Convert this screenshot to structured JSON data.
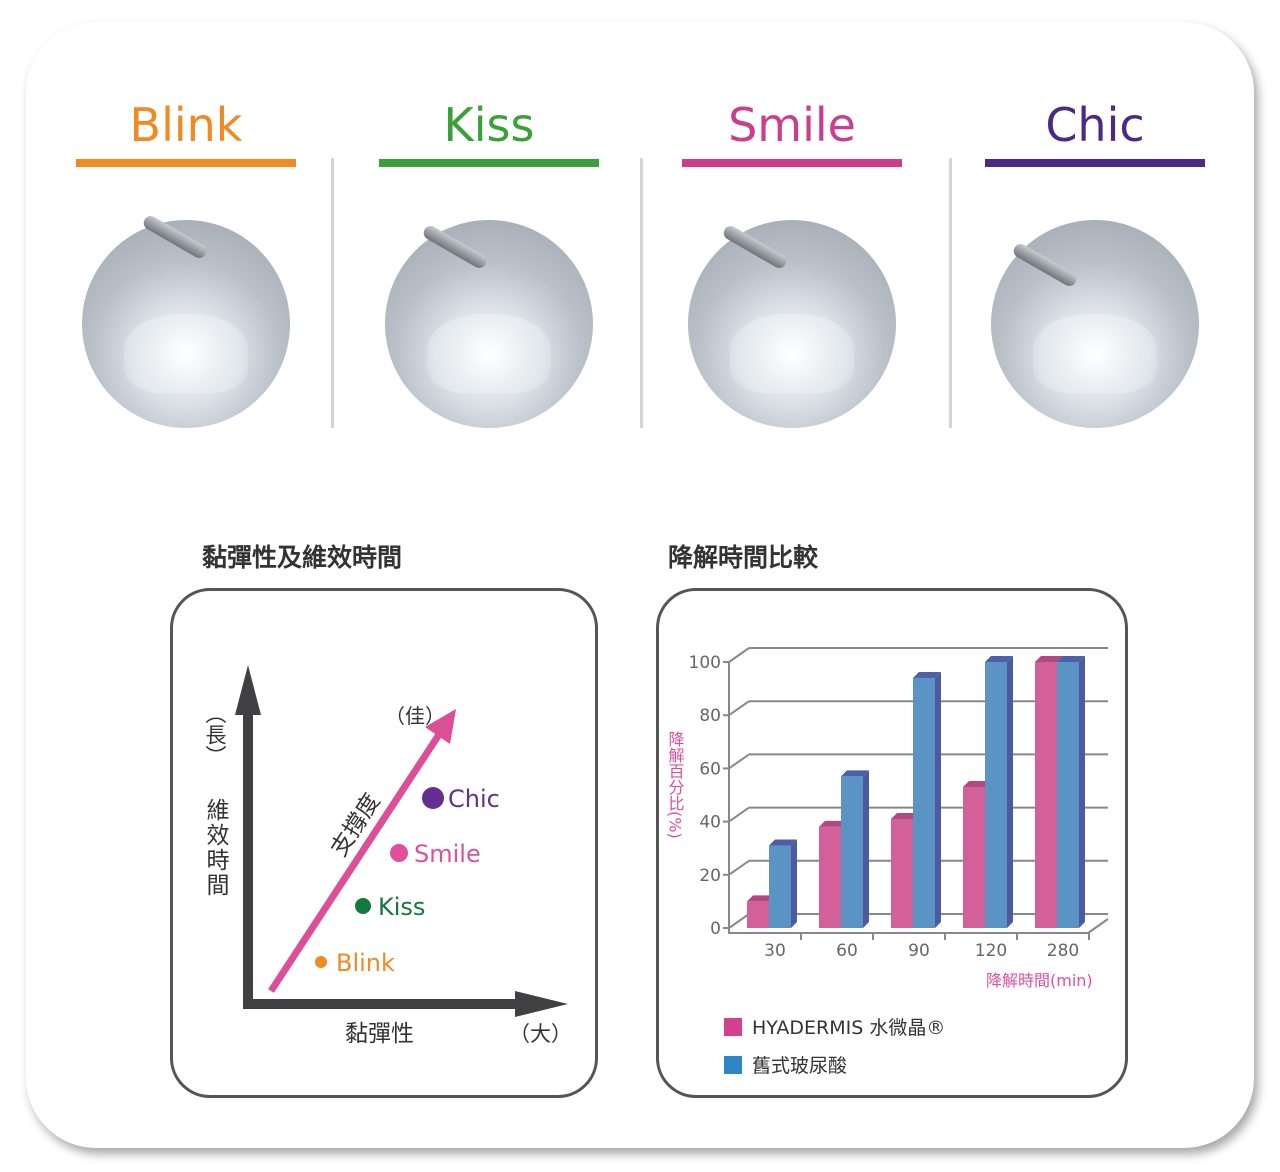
{
  "products": [
    {
      "name": "Blink",
      "color": "#f08a24"
    },
    {
      "name": "Kiss",
      "color": "#3aa13a"
    },
    {
      "name": "Smile",
      "color": "#cc3d8a"
    },
    {
      "name": "Chic",
      "color": "#4b2a86"
    }
  ],
  "left_chart": {
    "title": "黏彈性及維效時間",
    "y_label": "維效時間",
    "y_end": "（長）",
    "x_label": "黏彈性",
    "x_end": "（大）",
    "arrow_label": "支撐度",
    "arrow_end": "（佳）",
    "points": [
      {
        "name": "Blink",
        "color": "#f08a24"
      },
      {
        "name": "Kiss",
        "color": "#127a3a"
      },
      {
        "name": "Smile",
        "color": "#e0509a"
      },
      {
        "name": "Chic",
        "color": "#652d90"
      }
    ]
  },
  "right_chart": {
    "title": "降解時間比較"
  },
  "chart_data": {
    "type": "bar",
    "categories": [
      "30",
      "60",
      "90",
      "120",
      "280"
    ],
    "series": [
      {
        "name": "HYADERMIS 水微晶®",
        "color": "#d4609a",
        "values": [
          10,
          38,
          41,
          53,
          100
        ]
      },
      {
        "name": "舊式玻尿酸",
        "color": "#5a94c4",
        "values": [
          31,
          57,
          94,
          100,
          100
        ]
      }
    ],
    "ylabel": "降解百分比(%)",
    "xlabel": "降解時間(min)",
    "yticks": [
      "0",
      "20",
      "40",
      "60",
      "80",
      "100"
    ],
    "ylim": [
      0,
      100
    ],
    "grid": true,
    "legend": "bottom-left"
  }
}
